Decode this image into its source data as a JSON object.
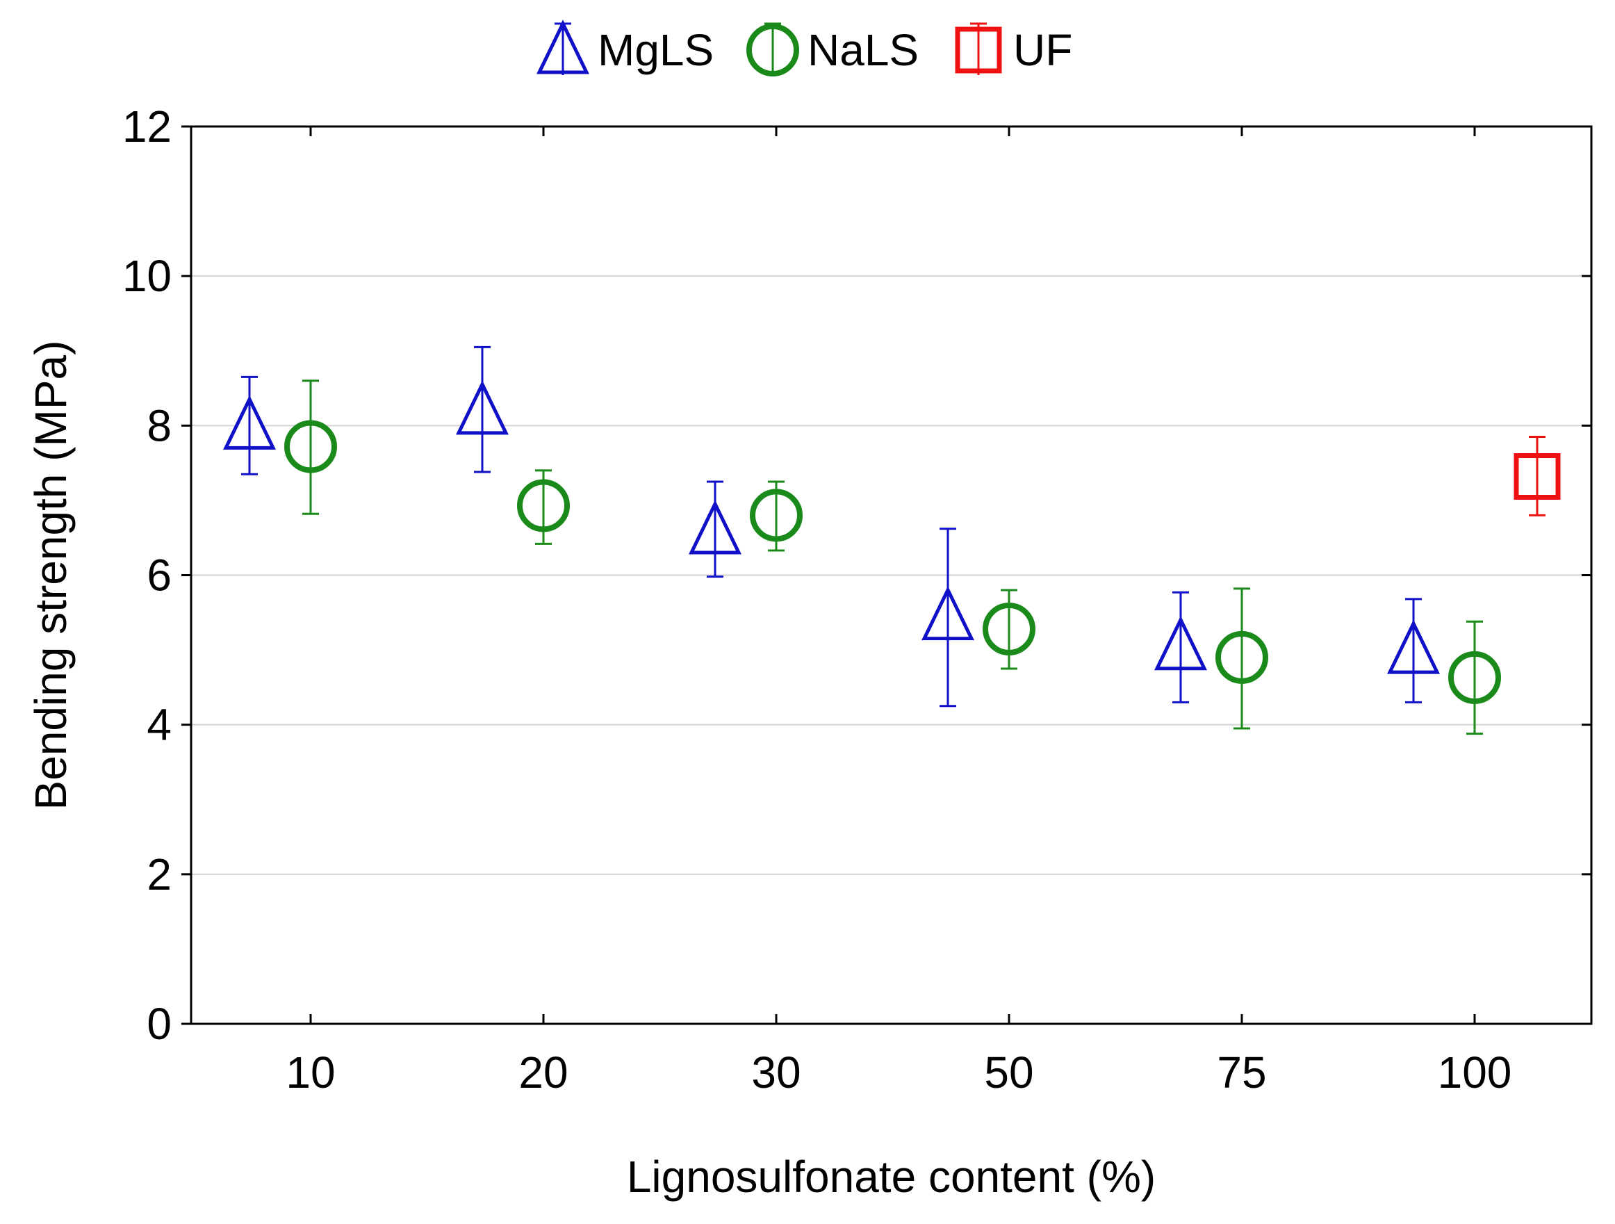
{
  "chart_data": {
    "type": "scatter",
    "xlabel": "Lignosulfonate content (%)",
    "ylabel": "Bending strength  (MPa)",
    "categories": [
      "10",
      "20",
      "30",
      "50",
      "75",
      "100"
    ],
    "ylim": [
      0,
      12
    ],
    "yticks": [
      "0",
      "2",
      "4",
      "6",
      "8",
      "10",
      "12"
    ],
    "grid": true,
    "legend_position": "top",
    "series": [
      {
        "name": "MgLS",
        "marker": "triangle",
        "color": "#1010c8",
        "values": [
          8.0,
          8.2,
          6.6,
          5.45,
          5.05,
          5.0
        ],
        "err_low": [
          7.35,
          7.38,
          5.98,
          4.25,
          4.3,
          4.3
        ],
        "err_high": [
          8.65,
          9.05,
          7.25,
          6.62,
          5.77,
          5.68
        ]
      },
      {
        "name": "NaLS",
        "marker": "circle",
        "color": "#1a8a1a",
        "values": [
          7.72,
          6.93,
          6.8,
          5.28,
          4.9,
          4.63
        ],
        "err_low": [
          6.82,
          6.42,
          6.33,
          4.75,
          3.95,
          3.88
        ],
        "err_high": [
          8.6,
          7.4,
          7.25,
          5.8,
          5.82,
          5.38
        ]
      },
      {
        "name": "UF",
        "marker": "square",
        "color": "#ee1111",
        "values": [
          null,
          null,
          null,
          null,
          null,
          7.32
        ],
        "err_low": [
          null,
          null,
          null,
          null,
          null,
          6.8
        ],
        "err_high": [
          null,
          null,
          null,
          null,
          null,
          7.85
        ]
      }
    ]
  }
}
